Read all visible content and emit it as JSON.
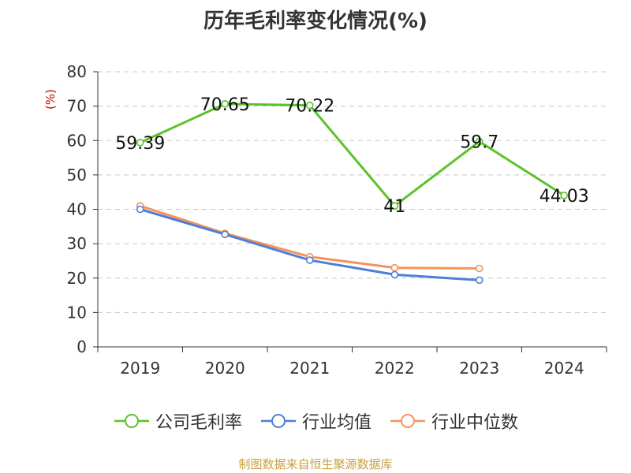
{
  "chart_data": {
    "type": "line",
    "title": "历年毛利率变化情况(%)",
    "ylabel": "(%)",
    "xlabel": "",
    "categories": [
      "2019",
      "2020",
      "2021",
      "2022",
      "2023",
      "2024"
    ],
    "ylim": [
      0,
      80
    ],
    "yticks": [
      0,
      10,
      20,
      30,
      40,
      50,
      60,
      70,
      80
    ],
    "grid": true,
    "legend_position": "bottom",
    "series": [
      {
        "name": "公司毛利率",
        "color": "#5cc22a",
        "values": [
          59.39,
          70.65,
          70.22,
          41,
          59.7,
          44.03
        ],
        "labels": [
          "59.39",
          "70.65",
          "70.22",
          "41",
          "59.7",
          "44.03"
        ]
      },
      {
        "name": "行业均值",
        "color": "#4e7fd8",
        "values": [
          40.0,
          32.7,
          25.2,
          21.0,
          19.4,
          null
        ]
      },
      {
        "name": "行业中位数",
        "color": "#f5935a",
        "values": [
          41.0,
          33.0,
          26.2,
          23.0,
          22.8,
          null
        ]
      }
    ]
  },
  "source_note": "制图数据来自恒生聚源数据库"
}
